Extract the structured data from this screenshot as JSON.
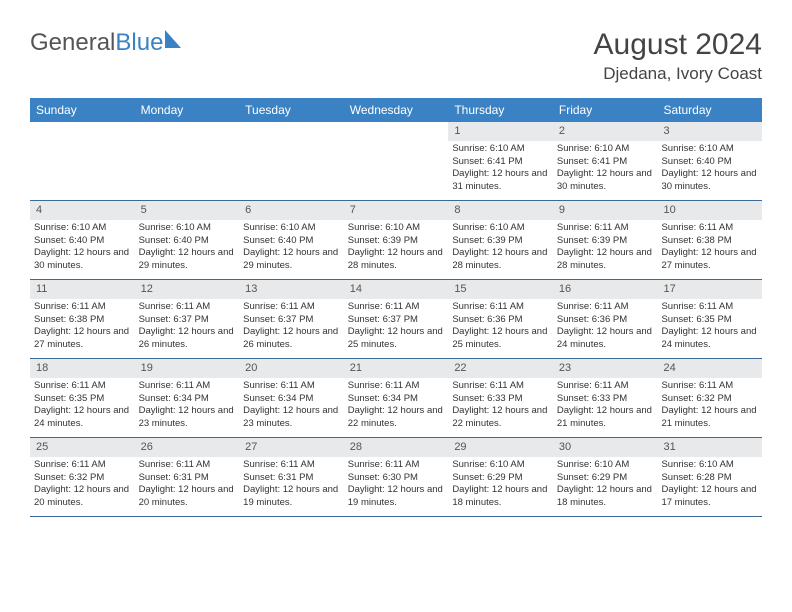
{
  "logo": {
    "part1": "General",
    "part2": "Blue"
  },
  "title": "August 2024",
  "location": "Djedana, Ivory Coast",
  "colors": {
    "header_bg": "#3b82c4",
    "header_text": "#ffffff",
    "daynum_bg": "#e7e9eb",
    "border": "#3b6a94",
    "text": "#333333"
  },
  "day_names": [
    "Sunday",
    "Monday",
    "Tuesday",
    "Wednesday",
    "Thursday",
    "Friday",
    "Saturday"
  ],
  "weeks": [
    [
      {
        "n": "",
        "sunrise": "",
        "sunset": "",
        "day": ""
      },
      {
        "n": "",
        "sunrise": "",
        "sunset": "",
        "day": ""
      },
      {
        "n": "",
        "sunrise": "",
        "sunset": "",
        "day": ""
      },
      {
        "n": "",
        "sunrise": "",
        "sunset": "",
        "day": ""
      },
      {
        "n": "1",
        "sunrise": "Sunrise: 6:10 AM",
        "sunset": "Sunset: 6:41 PM",
        "day": "Daylight: 12 hours and 31 minutes."
      },
      {
        "n": "2",
        "sunrise": "Sunrise: 6:10 AM",
        "sunset": "Sunset: 6:41 PM",
        "day": "Daylight: 12 hours and 30 minutes."
      },
      {
        "n": "3",
        "sunrise": "Sunrise: 6:10 AM",
        "sunset": "Sunset: 6:40 PM",
        "day": "Daylight: 12 hours and 30 minutes."
      }
    ],
    [
      {
        "n": "4",
        "sunrise": "Sunrise: 6:10 AM",
        "sunset": "Sunset: 6:40 PM",
        "day": "Daylight: 12 hours and 30 minutes."
      },
      {
        "n": "5",
        "sunrise": "Sunrise: 6:10 AM",
        "sunset": "Sunset: 6:40 PM",
        "day": "Daylight: 12 hours and 29 minutes."
      },
      {
        "n": "6",
        "sunrise": "Sunrise: 6:10 AM",
        "sunset": "Sunset: 6:40 PM",
        "day": "Daylight: 12 hours and 29 minutes."
      },
      {
        "n": "7",
        "sunrise": "Sunrise: 6:10 AM",
        "sunset": "Sunset: 6:39 PM",
        "day": "Daylight: 12 hours and 28 minutes."
      },
      {
        "n": "8",
        "sunrise": "Sunrise: 6:10 AM",
        "sunset": "Sunset: 6:39 PM",
        "day": "Daylight: 12 hours and 28 minutes."
      },
      {
        "n": "9",
        "sunrise": "Sunrise: 6:11 AM",
        "sunset": "Sunset: 6:39 PM",
        "day": "Daylight: 12 hours and 28 minutes."
      },
      {
        "n": "10",
        "sunrise": "Sunrise: 6:11 AM",
        "sunset": "Sunset: 6:38 PM",
        "day": "Daylight: 12 hours and 27 minutes."
      }
    ],
    [
      {
        "n": "11",
        "sunrise": "Sunrise: 6:11 AM",
        "sunset": "Sunset: 6:38 PM",
        "day": "Daylight: 12 hours and 27 minutes."
      },
      {
        "n": "12",
        "sunrise": "Sunrise: 6:11 AM",
        "sunset": "Sunset: 6:37 PM",
        "day": "Daylight: 12 hours and 26 minutes."
      },
      {
        "n": "13",
        "sunrise": "Sunrise: 6:11 AM",
        "sunset": "Sunset: 6:37 PM",
        "day": "Daylight: 12 hours and 26 minutes."
      },
      {
        "n": "14",
        "sunrise": "Sunrise: 6:11 AM",
        "sunset": "Sunset: 6:37 PM",
        "day": "Daylight: 12 hours and 25 minutes."
      },
      {
        "n": "15",
        "sunrise": "Sunrise: 6:11 AM",
        "sunset": "Sunset: 6:36 PM",
        "day": "Daylight: 12 hours and 25 minutes."
      },
      {
        "n": "16",
        "sunrise": "Sunrise: 6:11 AM",
        "sunset": "Sunset: 6:36 PM",
        "day": "Daylight: 12 hours and 24 minutes."
      },
      {
        "n": "17",
        "sunrise": "Sunrise: 6:11 AM",
        "sunset": "Sunset: 6:35 PM",
        "day": "Daylight: 12 hours and 24 minutes."
      }
    ],
    [
      {
        "n": "18",
        "sunrise": "Sunrise: 6:11 AM",
        "sunset": "Sunset: 6:35 PM",
        "day": "Daylight: 12 hours and 24 minutes."
      },
      {
        "n": "19",
        "sunrise": "Sunrise: 6:11 AM",
        "sunset": "Sunset: 6:34 PM",
        "day": "Daylight: 12 hours and 23 minutes."
      },
      {
        "n": "20",
        "sunrise": "Sunrise: 6:11 AM",
        "sunset": "Sunset: 6:34 PM",
        "day": "Daylight: 12 hours and 23 minutes."
      },
      {
        "n": "21",
        "sunrise": "Sunrise: 6:11 AM",
        "sunset": "Sunset: 6:34 PM",
        "day": "Daylight: 12 hours and 22 minutes."
      },
      {
        "n": "22",
        "sunrise": "Sunrise: 6:11 AM",
        "sunset": "Sunset: 6:33 PM",
        "day": "Daylight: 12 hours and 22 minutes."
      },
      {
        "n": "23",
        "sunrise": "Sunrise: 6:11 AM",
        "sunset": "Sunset: 6:33 PM",
        "day": "Daylight: 12 hours and 21 minutes."
      },
      {
        "n": "24",
        "sunrise": "Sunrise: 6:11 AM",
        "sunset": "Sunset: 6:32 PM",
        "day": "Daylight: 12 hours and 21 minutes."
      }
    ],
    [
      {
        "n": "25",
        "sunrise": "Sunrise: 6:11 AM",
        "sunset": "Sunset: 6:32 PM",
        "day": "Daylight: 12 hours and 20 minutes."
      },
      {
        "n": "26",
        "sunrise": "Sunrise: 6:11 AM",
        "sunset": "Sunset: 6:31 PM",
        "day": "Daylight: 12 hours and 20 minutes."
      },
      {
        "n": "27",
        "sunrise": "Sunrise: 6:11 AM",
        "sunset": "Sunset: 6:31 PM",
        "day": "Daylight: 12 hours and 19 minutes."
      },
      {
        "n": "28",
        "sunrise": "Sunrise: 6:11 AM",
        "sunset": "Sunset: 6:30 PM",
        "day": "Daylight: 12 hours and 19 minutes."
      },
      {
        "n": "29",
        "sunrise": "Sunrise: 6:10 AM",
        "sunset": "Sunset: 6:29 PM",
        "day": "Daylight: 12 hours and 18 minutes."
      },
      {
        "n": "30",
        "sunrise": "Sunrise: 6:10 AM",
        "sunset": "Sunset: 6:29 PM",
        "day": "Daylight: 12 hours and 18 minutes."
      },
      {
        "n": "31",
        "sunrise": "Sunrise: 6:10 AM",
        "sunset": "Sunset: 6:28 PM",
        "day": "Daylight: 12 hours and 17 minutes."
      }
    ]
  ]
}
